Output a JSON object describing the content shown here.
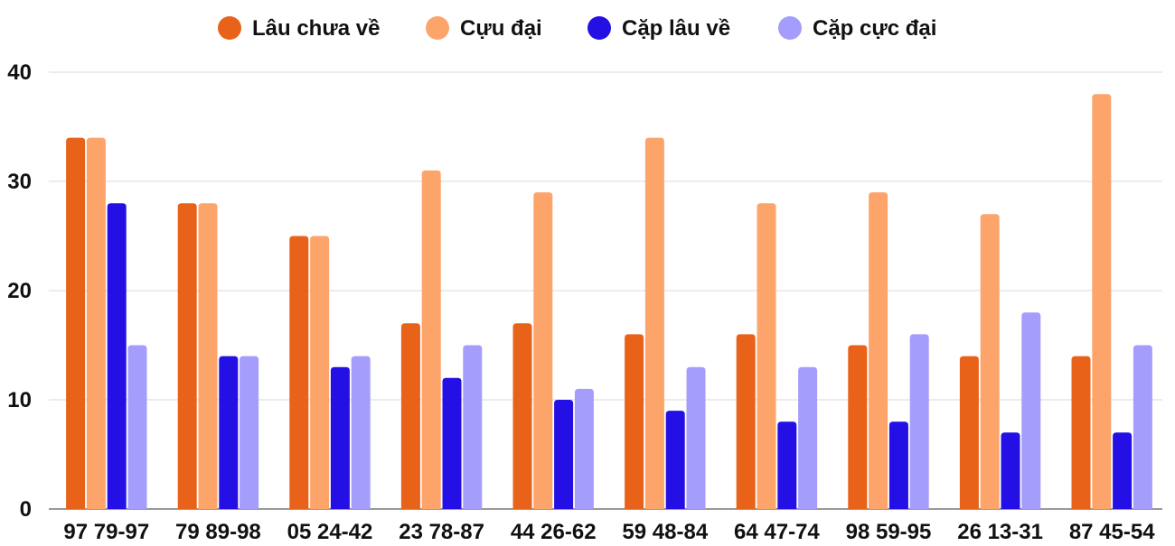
{
  "chart_data": {
    "type": "bar",
    "title": "",
    "xlabel": "",
    "ylabel": "",
    "ylim": [
      0,
      40
    ],
    "yticks": [
      0,
      10,
      20,
      30,
      40
    ],
    "grid": true,
    "legend_position": "top-center",
    "categories": [
      "97 79-97",
      "79 89-98",
      "05 24-42",
      "23 78-87",
      "44 26-62",
      "59 48-84",
      "64 47-74",
      "98 59-95",
      "26 13-31",
      "87 45-54"
    ],
    "series": [
      {
        "name": "Lâu chưa về",
        "color": "#e8621a",
        "values": [
          34,
          28,
          25,
          17,
          17,
          16,
          16,
          15,
          14,
          14
        ]
      },
      {
        "name": "Cựu đại",
        "color": "#fda46b",
        "values": [
          34,
          28,
          25,
          31,
          29,
          34,
          28,
          29,
          27,
          38
        ]
      },
      {
        "name": "Cặp lâu về",
        "color": "#2410e4",
        "values": [
          28,
          14,
          13,
          12,
          10,
          9,
          8,
          8,
          7,
          7
        ]
      },
      {
        "name": "Cặp cực đại",
        "color": "#a49dfc",
        "values": [
          15,
          14,
          14,
          15,
          11,
          13,
          13,
          16,
          18,
          15
        ]
      }
    ]
  }
}
